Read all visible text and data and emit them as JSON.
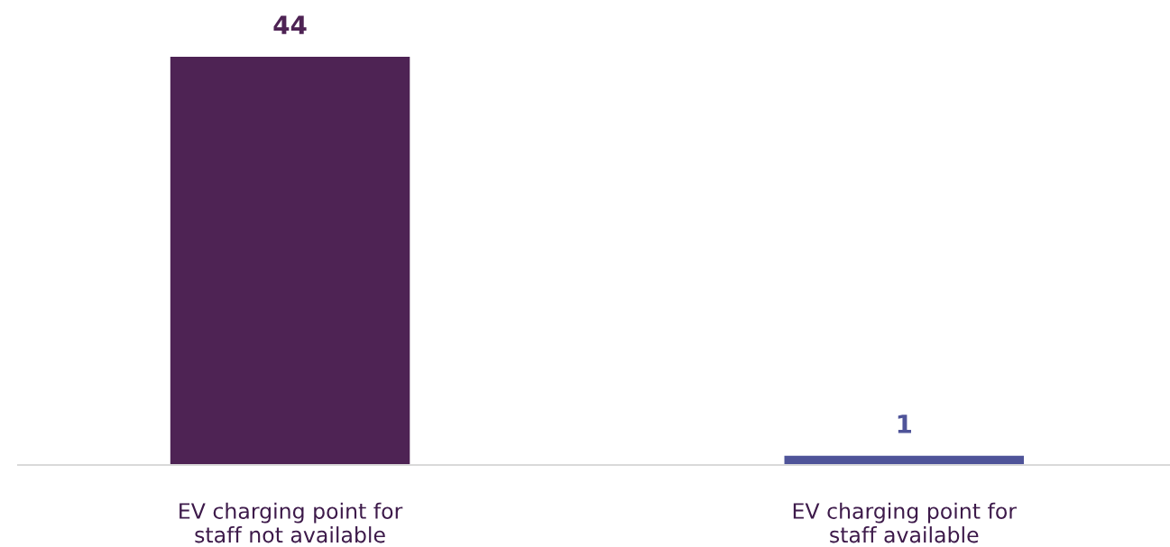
{
  "chart_data": {
    "type": "bar",
    "categories": [
      "EV charging point for\nstaff not available",
      "EV charging point for\nstaff available"
    ],
    "values": [
      44,
      1
    ],
    "colors": [
      "#4e2354",
      "#4f5499"
    ],
    "data_labels": true,
    "grid": false,
    "legend": false
  }
}
